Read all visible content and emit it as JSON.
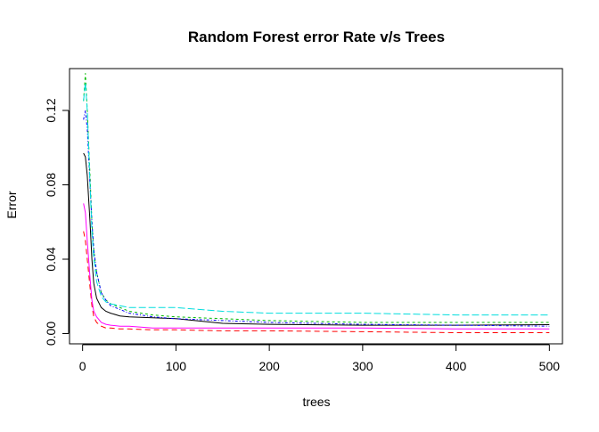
{
  "chart_data": {
    "type": "line",
    "title": "Random Forest error Rate v/s Trees",
    "xlabel": "trees",
    "ylabel": "Error",
    "xlim": [
      -14,
      514
    ],
    "ylim": [
      -0.0055,
      0.1425
    ],
    "x_ticks": [
      {
        "value": 0,
        "label": "0"
      },
      {
        "value": 100,
        "label": "100"
      },
      {
        "value": 200,
        "label": "200"
      },
      {
        "value": 300,
        "label": "300"
      },
      {
        "value": 400,
        "label": "400"
      },
      {
        "value": 500,
        "label": "500"
      }
    ],
    "y_ticks": [
      {
        "value": 0.0,
        "label": "0.00"
      },
      {
        "value": 0.04,
        "label": "0.04"
      },
      {
        "value": 0.08,
        "label": "0.08"
      },
      {
        "value": 0.12,
        "label": "0.12"
      }
    ],
    "grid": false,
    "legend": "none",
    "series": [
      {
        "color": "#000000",
        "dash": "",
        "x": [
          1,
          3,
          5,
          8,
          10,
          12,
          15,
          20,
          25,
          30,
          40,
          50,
          75,
          100,
          150,
          200,
          300,
          400,
          500
        ],
        "y": [
          0.097,
          0.095,
          0.085,
          0.06,
          0.04,
          0.027,
          0.019,
          0.014,
          0.012,
          0.011,
          0.0095,
          0.009,
          0.0085,
          0.008,
          0.0055,
          0.005,
          0.0045,
          0.0045,
          0.0048
        ]
      },
      {
        "color": "#FF0000",
        "dash": "6,4",
        "x": [
          1,
          3,
          5,
          8,
          10,
          12,
          15,
          20,
          25,
          30,
          40,
          50,
          75,
          100,
          150,
          200,
          300,
          400,
          500
        ],
        "y": [
          0.055,
          0.05,
          0.04,
          0.025,
          0.015,
          0.009,
          0.006,
          0.004,
          0.003,
          0.003,
          0.0025,
          0.0025,
          0.002,
          0.002,
          0.0015,
          0.0015,
          0.001,
          0.0005,
          0.0005
        ]
      },
      {
        "color": "#00BB00",
        "dash": "3,3",
        "x": [
          1,
          3,
          5,
          8,
          10,
          12,
          15,
          20,
          25,
          30,
          40,
          50,
          75,
          100,
          150,
          200,
          300,
          400,
          500
        ],
        "y": [
          0.125,
          0.14,
          0.12,
          0.085,
          0.06,
          0.045,
          0.033,
          0.022,
          0.018,
          0.016,
          0.014,
          0.012,
          0.01,
          0.009,
          0.008,
          0.007,
          0.006,
          0.006,
          0.006
        ]
      },
      {
        "color": "#0000FF",
        "dash": "3,2,1,2",
        "x": [
          1,
          3,
          5,
          8,
          10,
          12,
          15,
          20,
          25,
          30,
          40,
          50,
          75,
          100,
          150,
          200,
          300,
          400,
          500
        ],
        "y": [
          0.115,
          0.12,
          0.11,
          0.08,
          0.06,
          0.045,
          0.033,
          0.022,
          0.018,
          0.015,
          0.013,
          0.011,
          0.009,
          0.008,
          0.007,
          0.006,
          0.005,
          0.0045,
          0.004
        ]
      },
      {
        "color": "#00DDDD",
        "dash": "8,3",
        "x": [
          1,
          3,
          5,
          8,
          10,
          12,
          15,
          20,
          25,
          30,
          40,
          50,
          75,
          100,
          150,
          200,
          300,
          400,
          500
        ],
        "y": [
          0.125,
          0.135,
          0.12,
          0.08,
          0.055,
          0.04,
          0.028,
          0.02,
          0.017,
          0.016,
          0.015,
          0.014,
          0.014,
          0.014,
          0.012,
          0.011,
          0.011,
          0.01,
          0.01
        ]
      },
      {
        "color": "#FF00FF",
        "dash": "",
        "x": [
          1,
          3,
          5,
          8,
          10,
          12,
          15,
          20,
          25,
          30,
          40,
          50,
          75,
          100,
          150,
          200,
          300,
          400,
          500
        ],
        "y": [
          0.07,
          0.065,
          0.05,
          0.03,
          0.018,
          0.012,
          0.009,
          0.006,
          0.005,
          0.0045,
          0.004,
          0.004,
          0.003,
          0.003,
          0.003,
          0.003,
          0.003,
          0.0025,
          0.0025
        ]
      }
    ]
  }
}
